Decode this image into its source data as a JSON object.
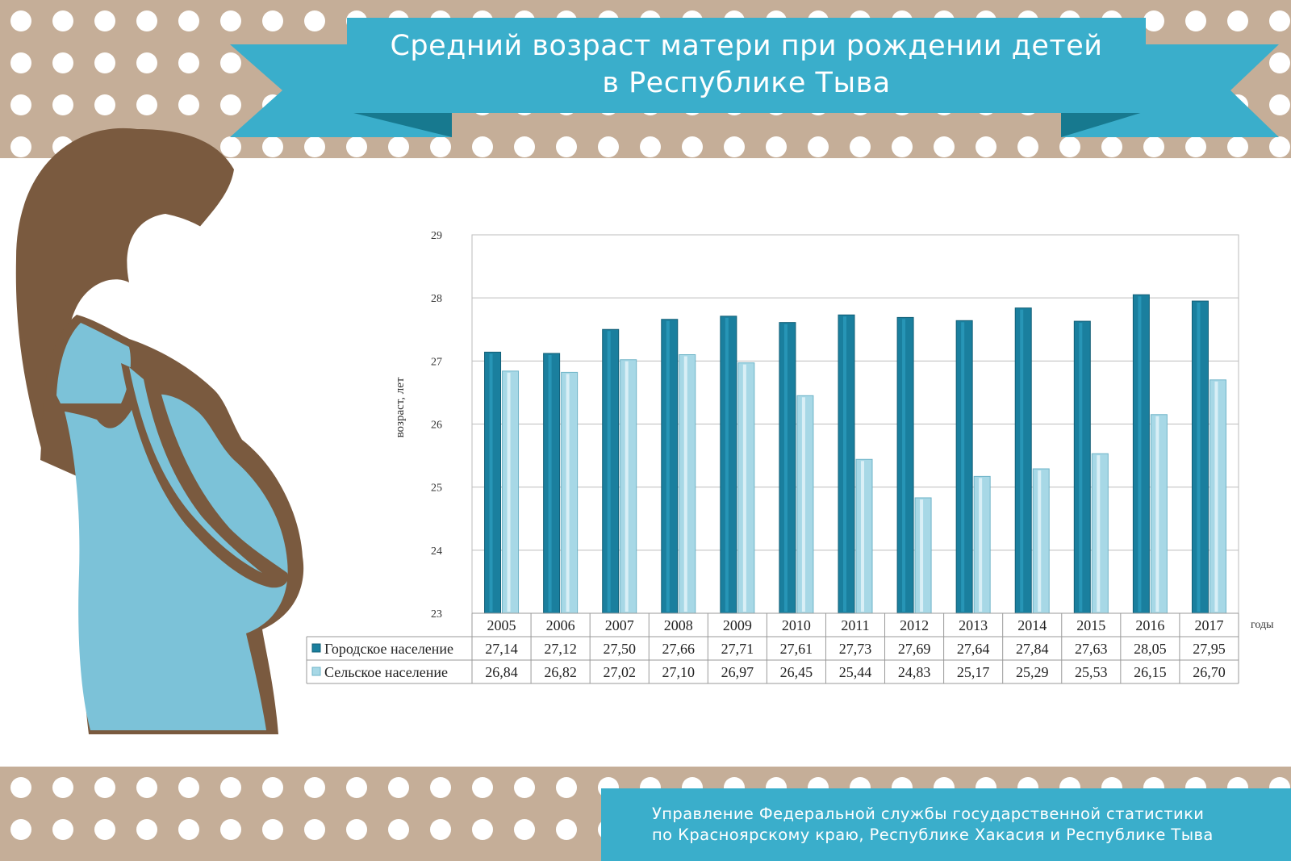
{
  "title": {
    "line1": "Средний возраст матери при рождении детей",
    "line2": "в Республике Тыва"
  },
  "footer": {
    "line1": "Управление Федеральной службы государственной статистики",
    "line2": "по Красноярскому краю, Республике Хакасия и Республике Тыва"
  },
  "colors": {
    "background_band": "#c5ae98",
    "banner": "#3aaecb",
    "banner_dark": "#1f8ea8",
    "urban": "#1a7f9e",
    "rural": "#a7d8e6",
    "silhouette_hair": "#7a5a3f",
    "silhouette_dress": "#7cc2d8"
  },
  "chart_data": {
    "type": "bar",
    "ylabel": "возраст, лет",
    "xlabel": "годы",
    "ylim": [
      23,
      29
    ],
    "yticks": [
      23,
      24,
      25,
      26,
      27,
      28,
      29
    ],
    "grid": true,
    "categories": [
      "2005",
      "2006",
      "2007",
      "2008",
      "2009",
      "2010",
      "2011",
      "2012",
      "2013",
      "2014",
      "2015",
      "2016",
      "2017"
    ],
    "series": [
      {
        "name": "Городское население",
        "values": [
          27.14,
          27.12,
          27.5,
          27.66,
          27.71,
          27.61,
          27.73,
          27.69,
          27.64,
          27.84,
          27.63,
          28.05,
          27.95
        ],
        "labels": [
          "27,14",
          "27,12",
          "27,50",
          "27,66",
          "27,71",
          "27,61",
          "27,73",
          "27,69",
          "27,64",
          "27,84",
          "27,63",
          "28,05",
          "27,95"
        ]
      },
      {
        "name": "Сельское население",
        "values": [
          26.84,
          26.82,
          27.02,
          27.1,
          26.97,
          26.45,
          25.44,
          24.83,
          25.17,
          25.29,
          25.53,
          26.15,
          26.7
        ],
        "labels": [
          "26,84",
          "26,82",
          "27,02",
          "27,10",
          "26,97",
          "26,45",
          "25,44",
          "24,83",
          "25,17",
          "25,29",
          "25,53",
          "26,15",
          "26,70"
        ]
      }
    ]
  }
}
